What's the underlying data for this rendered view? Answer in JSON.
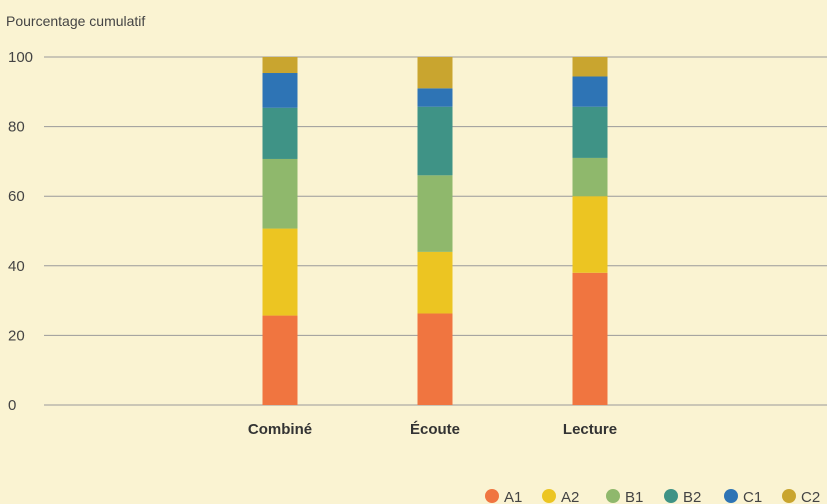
{
  "chart_data": {
    "type": "bar",
    "stacked": true,
    "ylabel": "Pourcentage cumulatif",
    "xlabel": "",
    "ylim": [
      0,
      100
    ],
    "yticks": [
      0,
      20,
      40,
      60,
      80,
      100
    ],
    "grid": true,
    "legend_position": "bottom-right",
    "categories": [
      "Combiné",
      "Écoute",
      "Lecture"
    ],
    "series": [
      {
        "name": "A1",
        "color": "#f07540",
        "values": [
          25.7,
          26.3,
          38.0
        ]
      },
      {
        "name": "A2",
        "color": "#ecc522",
        "values": [
          25.0,
          17.7,
          22.0
        ]
      },
      {
        "name": "B1",
        "color": "#8fb86c",
        "values": [
          20.0,
          22.0,
          11.0
        ]
      },
      {
        "name": "B2",
        "color": "#3f9386",
        "values": [
          14.7,
          19.7,
          14.7
        ]
      },
      {
        "name": "C1",
        "color": "#2e74b5",
        "values": [
          10.0,
          5.3,
          8.7
        ]
      },
      {
        "name": "C2",
        "color": "#c9a52f",
        "values": [
          4.6,
          9.0,
          5.6
        ]
      }
    ]
  }
}
